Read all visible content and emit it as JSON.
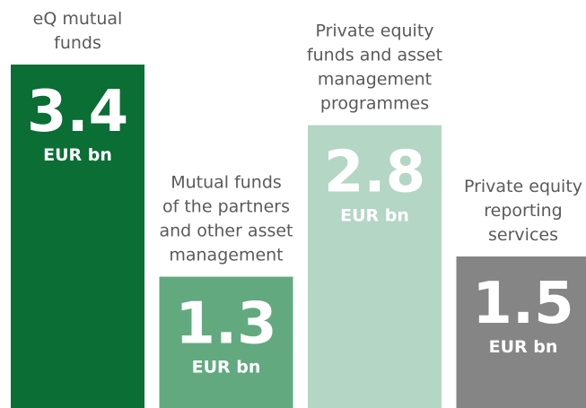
{
  "chart_data": {
    "type": "bar",
    "categories": [
      [
        "eQ mutual",
        "funds"
      ],
      [
        "Mutual funds",
        "of the partners",
        "and other asset",
        "management"
      ],
      [
        "Private equity",
        "funds and asset",
        "management",
        "programmes"
      ],
      [
        "Private equity",
        "reporting",
        "services"
      ]
    ],
    "values": [
      3.4,
      1.3,
      2.8,
      1.5
    ],
    "unit": "EUR bn",
    "colors": [
      "#0a6e35",
      "#63a980",
      "#b4d6c4",
      "#858585"
    ]
  }
}
